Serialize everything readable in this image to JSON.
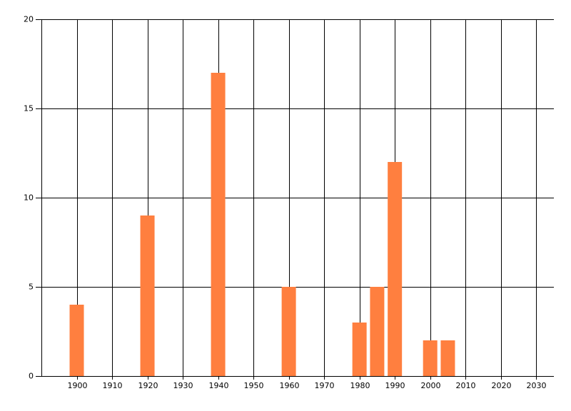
{
  "chart_data": {
    "type": "bar",
    "x": [
      1900,
      1920,
      1940,
      1960,
      1980,
      1985,
      1990,
      2000,
      2005
    ],
    "values": [
      4,
      9,
      17,
      5,
      3,
      5,
      12,
      2,
      2
    ],
    "color": "#ff7f3f",
    "xlim": [
      1890,
      2035
    ],
    "xticks": [
      1900,
      1910,
      1920,
      1930,
      1940,
      1950,
      1960,
      1970,
      1980,
      1990,
      2000,
      2010,
      2020,
      2030
    ],
    "ylim": [
      0,
      20
    ],
    "yticks": [
      0,
      5,
      10,
      15,
      20
    ],
    "grid": true
  }
}
